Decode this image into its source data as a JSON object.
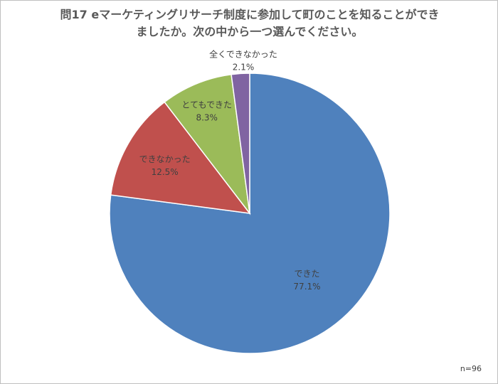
{
  "chart_data": {
    "type": "pie",
    "title_lines": [
      "問17 eマーケティングリサーチ制度に参加して町のことを知ることができ",
      "ましたか。次の中から一つ選んでください。"
    ],
    "slices": [
      {
        "label": "できた",
        "value": 77.1,
        "value_label": "77.1%",
        "color": "#4F81BD"
      },
      {
        "label": "できなかった",
        "value": 12.5,
        "value_label": "12.5%",
        "color": "#C0504D"
      },
      {
        "label": "とてもできた",
        "value": 8.3,
        "value_label": "8.3%",
        "color": "#9BBB59"
      },
      {
        "label": "全くできなかった",
        "value": 2.1,
        "value_label": "2.1%",
        "color": "#8064A2"
      }
    ],
    "note": "n=96"
  }
}
